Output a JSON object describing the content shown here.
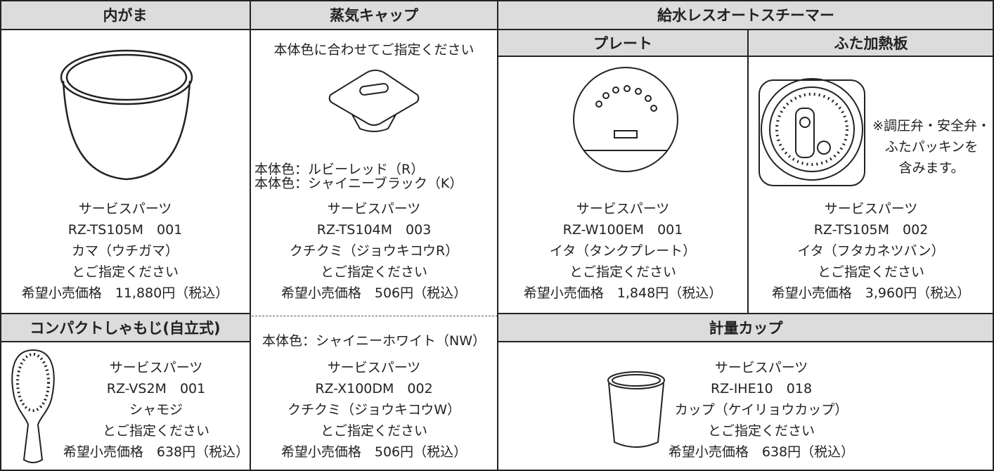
{
  "headers": {
    "inner_pot": "内がま",
    "steam_cap": "蒸気キャップ",
    "steamer": "給水レスオートスチーマー",
    "plate": "プレート",
    "lid_plate": "ふた加熱板",
    "paddle": "コンパクトしゃもじ(自立式)",
    "cup": "計量カップ"
  },
  "steam_cap_note": "本体色に合わせてご指定ください",
  "steam_cap_colors": [
    "本体色：ルビーレッド（R）",
    "本体色：シャイニーブラック（K）"
  ],
  "white_cap_color": "本体色：シャイニーホワイト（NW）",
  "lid_plate_note": [
    "※調圧弁・安全弁・",
    "ふたパッキンを",
    "含みます。"
  ],
  "inner_pot": {
    "lines": [
      "サービスパーツ",
      "RZ-TS105M　001",
      "カマ（ウチガマ）",
      "とご指定ください",
      "希望小売価格　11,880円（税込）"
    ]
  },
  "steam_cap": {
    "lines": [
      "サービスパーツ",
      "RZ-TS104M　003",
      "クチクミ（ジョウキコウR）",
      "とご指定ください",
      "希望小売価格　506円（税込）"
    ]
  },
  "plate": {
    "lines": [
      "サービスパーツ",
      "RZ-W100EM　001",
      "イタ（タンクプレート）",
      "とご指定ください",
      "希望小売価格　1,848円（税込）"
    ]
  },
  "lid_plate": {
    "lines": [
      "サービスパーツ",
      "RZ-TS105M　002",
      "イタ（フタカネツバン）",
      "とご指定ください",
      "希望小売価格　3,960円（税込）"
    ]
  },
  "paddle": {
    "lines": [
      "サービスパーツ",
      "RZ-VS2M　001",
      "シャモジ",
      "とご指定ください",
      "希望小売価格　638円（税込）"
    ]
  },
  "white_cap": {
    "lines": [
      "サービスパーツ",
      "RZ-X100DM　002",
      "クチクミ（ジョウキコウW）",
      "とご指定ください",
      "希望小売価格　506円（税込）"
    ]
  },
  "cup": {
    "lines": [
      "サービスパーツ",
      "RZ-IHE10　018",
      "カップ（ケイリョウカップ）",
      "とご指定ください",
      "希望小売価格　638円（税込）"
    ]
  }
}
